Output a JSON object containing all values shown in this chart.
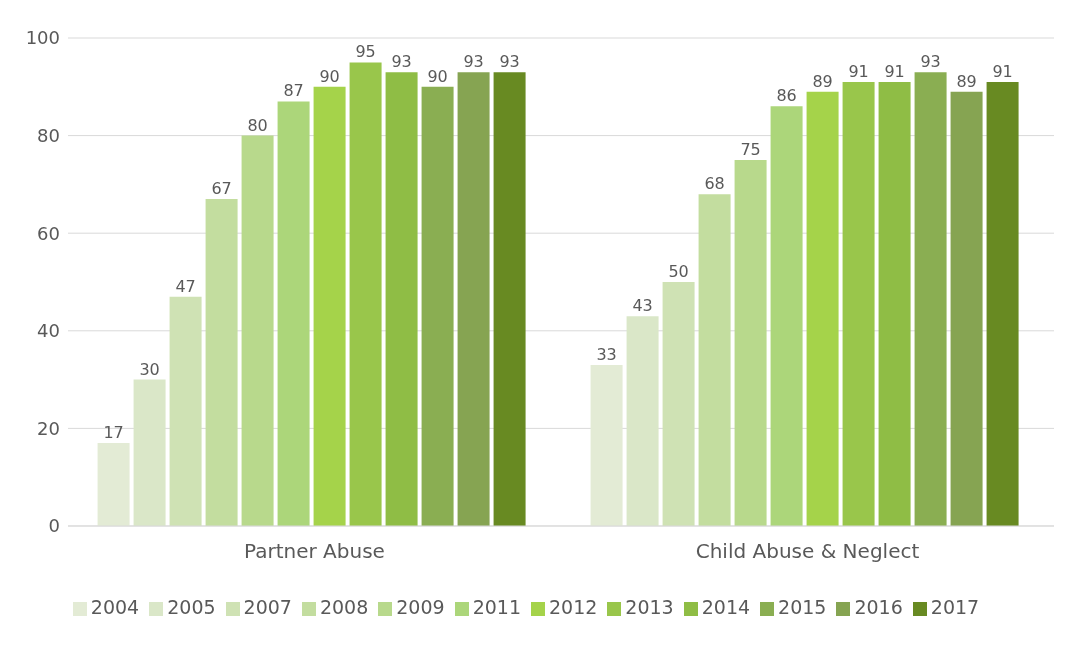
{
  "chart_data": {
    "type": "bar",
    "categories": [
      "Partner Abuse",
      "Child Abuse & Neglect"
    ],
    "series": [
      {
        "name": "2004",
        "color": "#e3ebd5",
        "values": [
          17,
          33
        ]
      },
      {
        "name": "2005",
        "color": "#dae7c8",
        "values": [
          30,
          43
        ]
      },
      {
        "name": "2007",
        "color": "#cfe2b4",
        "values": [
          47,
          50
        ]
      },
      {
        "name": "2008",
        "color": "#c3dd9f",
        "values": [
          67,
          68
        ]
      },
      {
        "name": "2009",
        "color": "#b8d98c",
        "values": [
          80,
          75
        ]
      },
      {
        "name": "2011",
        "color": "#acd67a",
        "values": [
          87,
          86
        ]
      },
      {
        "name": "2012",
        "color": "#a5d34a",
        "values": [
          90,
          89
        ]
      },
      {
        "name": "2013",
        "color": "#99c64b",
        "values": [
          95,
          91
        ]
      },
      {
        "name": "2014",
        "color": "#8fbd45",
        "values": [
          93,
          91
        ]
      },
      {
        "name": "2015",
        "color": "#8aae52",
        "values": [
          90,
          93
        ]
      },
      {
        "name": "2016",
        "color": "#86a452",
        "values": [
          93,
          89
        ]
      },
      {
        "name": "2017",
        "color": "#688a22",
        "values": [
          93,
          91
        ]
      }
    ],
    "ylim": [
      0,
      100
    ],
    "yticks": [
      0,
      20,
      40,
      60,
      80,
      100
    ],
    "grid": "y",
    "legend": "bottom",
    "data_labels": true
  }
}
